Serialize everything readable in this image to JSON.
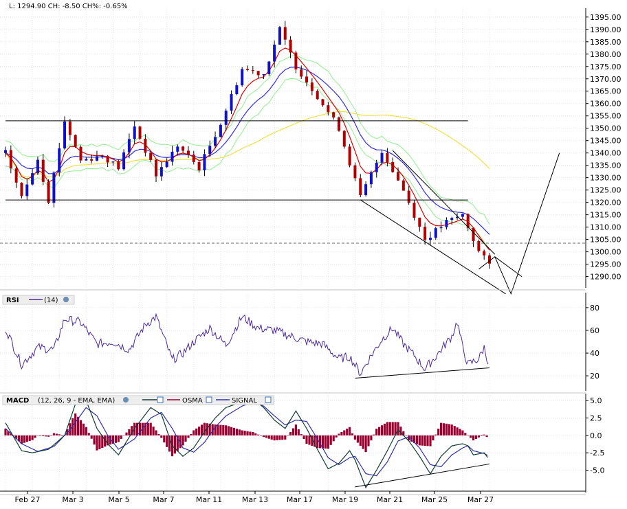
{
  "header": {
    "info": "L: 1294.90 CH: -8.50 CH%: -0.65%"
  },
  "colors": {
    "bg": "#ffffff",
    "grid": "#e3e3e3",
    "grid_dark": "#bdbdbd",
    "up_candle": "#1010c8",
    "down_candle": "#b00000",
    "wick": "#000000",
    "ema_fast": "#e00000",
    "ema_mid": "#3030e0",
    "sma_slow": "#f0e040",
    "envelope": "#90ee90",
    "rsi_line": "#4b2aa0",
    "macd_line": "#0f3a33",
    "signal_line": "#3030b0",
    "osma": "#9a0030"
  },
  "panels": {
    "rsi": {
      "label": "RSI",
      "params": "(14)"
    },
    "macd": {
      "label": "MACD",
      "params": "(12, 26, 9 - EMA, EMA)",
      "legend": [
        "OSMA",
        "SIGNAL"
      ]
    }
  },
  "chart_data": [
    {
      "type": "candlestick",
      "title": "",
      "y_ticks": [
        "1395.00",
        "1390.00",
        "1385.00",
        "1380.00",
        "1375.00",
        "1370.00",
        "1365.00",
        "1360.00",
        "1355.00",
        "1350.00",
        "1345.00",
        "1340.00",
        "1335.00",
        "1330.00",
        "1325.00",
        "1320.00",
        "1315.00",
        "1310.00",
        "1305.00",
        "1300.00",
        "1295.00",
        "1290.00"
      ],
      "ylim": [
        1286,
        1398
      ],
      "x_ticks": [
        "Feb 27",
        "Mar 3",
        "Mar 5",
        "Mar 7",
        "Mar 11",
        "Mar 13",
        "Mar 17",
        "Mar 19",
        "Mar 21",
        "Mar 25",
        "Mar 27"
      ],
      "last_price": 1294.9,
      "dashed_level": 1303.5,
      "anchors": [
        [
          0,
          1340
        ],
        [
          3,
          1322
        ],
        [
          6,
          1338
        ],
        [
          8,
          1321
        ],
        [
          11,
          1353
        ],
        [
          14,
          1337
        ],
        [
          18,
          1339
        ],
        [
          21,
          1334
        ],
        [
          24,
          1351
        ],
        [
          28,
          1331
        ],
        [
          32,
          1343
        ],
        [
          36,
          1334
        ],
        [
          40,
          1352
        ],
        [
          44,
          1374
        ],
        [
          48,
          1372
        ],
        [
          51,
          1390
        ],
        [
          54,
          1375
        ],
        [
          58,
          1363
        ],
        [
          62,
          1350
        ],
        [
          66,
          1322
        ],
        [
          70,
          1341
        ],
        [
          74,
          1325
        ],
        [
          78,
          1305
        ],
        [
          82,
          1312
        ],
        [
          85,
          1315
        ],
        [
          88,
          1300
        ],
        [
          90,
          1294.9
        ]
      ],
      "horizontal_levels": [
        {
          "price": 1353,
          "from": 0,
          "to": 86
        },
        {
          "price": 1321,
          "from": 0,
          "to": 86
        }
      ],
      "trendlines": [
        [
          [
            72,
            1341
          ],
          [
            91,
            1299
          ]
        ],
        [
          [
            66,
            1321
          ],
          [
            93,
            1283
          ]
        ]
      ],
      "projection": [
        [
          88,
          1293
        ],
        [
          91,
          1298
        ],
        [
          94,
          1283
        ],
        [
          103,
          1340
        ]
      ],
      "projection2": [
        [
          91,
          1298
        ],
        [
          96,
          1290
        ]
      ],
      "series": [
        {
          "name": "EMA fast"
        },
        {
          "name": "EMA mid"
        },
        {
          "name": "SMA slow"
        },
        {
          "name": "Envelope"
        }
      ]
    },
    {
      "type": "line",
      "name": "RSI",
      "y_ticks": [
        "80",
        "60",
        "40",
        "20"
      ],
      "ylim": [
        8,
        92
      ],
      "anchors": [
        [
          0,
          62
        ],
        [
          3,
          30
        ],
        [
          6,
          45
        ],
        [
          9,
          43
        ],
        [
          11,
          70
        ],
        [
          14,
          67
        ],
        [
          17,
          48
        ],
        [
          20,
          50
        ],
        [
          23,
          43
        ],
        [
          26,
          65
        ],
        [
          28,
          72
        ],
        [
          31,
          34
        ],
        [
          33,
          40
        ],
        [
          35,
          50
        ],
        [
          38,
          62
        ],
        [
          41,
          47
        ],
        [
          44,
          72
        ],
        [
          47,
          62
        ],
        [
          50,
          60
        ],
        [
          53,
          55
        ],
        [
          56,
          50
        ],
        [
          59,
          48
        ],
        [
          62,
          35
        ],
        [
          64,
          37
        ],
        [
          66,
          22
        ],
        [
          68,
          38
        ],
        [
          70,
          52
        ],
        [
          72,
          62
        ],
        [
          74,
          48
        ],
        [
          76,
          38
        ],
        [
          78,
          26
        ],
        [
          80,
          37
        ],
        [
          83,
          55
        ],
        [
          84,
          68
        ],
        [
          85,
          45
        ],
        [
          86,
          30
        ],
        [
          88,
          35
        ],
        [
          89,
          45
        ],
        [
          90,
          28
        ]
      ],
      "trendline": [
        [
          65,
          18
        ],
        [
          90,
          27
        ]
      ]
    },
    {
      "type": "line+bar",
      "name": "MACD",
      "y_ticks": [
        "5.0",
        "2.5",
        "0.0",
        "-2.5",
        "-5.0"
      ],
      "ylim": [
        -8.0,
        5.8
      ],
      "macd_anchors": [
        [
          0,
          1.8
        ],
        [
          3,
          -2.2
        ],
        [
          5,
          -2.5
        ],
        [
          8,
          -2.0
        ],
        [
          11,
          0.0
        ],
        [
          13,
          4.5
        ],
        [
          15,
          5.0
        ],
        [
          17,
          1.0
        ],
        [
          19,
          -1.2
        ],
        [
          21,
          -2.8
        ],
        [
          24,
          1.0
        ],
        [
          27,
          4.0
        ],
        [
          29,
          3.0
        ],
        [
          31,
          -1.5
        ],
        [
          33,
          -3.0
        ],
        [
          35,
          -1.8
        ],
        [
          37,
          0.5
        ],
        [
          39,
          2.5
        ],
        [
          41,
          4.0
        ],
        [
          44,
          4.8
        ],
        [
          46,
          5.2
        ],
        [
          48,
          4.0
        ],
        [
          50,
          2.2
        ],
        [
          52,
          1.0
        ],
        [
          54,
          3.5
        ],
        [
          56,
          1.0
        ],
        [
          58,
          -2.0
        ],
        [
          60,
          -4.8
        ],
        [
          62,
          -4.0
        ],
        [
          64,
          -2.2
        ],
        [
          65,
          -3.5
        ],
        [
          67,
          -7.5
        ],
        [
          69,
          -5.0
        ],
        [
          71,
          -2.2
        ],
        [
          73,
          0.8
        ],
        [
          75,
          -0.8
        ],
        [
          77,
          -3.0
        ],
        [
          79,
          -5.5
        ],
        [
          81,
          -3.0
        ],
        [
          83,
          -1.5
        ],
        [
          85,
          -1.2
        ],
        [
          86,
          -1.5
        ],
        [
          87,
          -2.8
        ],
        [
          89,
          -2.5
        ],
        [
          90,
          -3.5
        ]
      ],
      "signal_anchors": [
        [
          0,
          1.0
        ],
        [
          3,
          -1.2
        ],
        [
          6,
          -2.3
        ],
        [
          9,
          -1.6
        ],
        [
          12,
          0.8
        ],
        [
          15,
          4.0
        ],
        [
          17,
          2.8
        ],
        [
          19,
          0.0
        ],
        [
          21,
          -2.0
        ],
        [
          24,
          -0.5
        ],
        [
          27,
          2.5
        ],
        [
          29,
          3.3
        ],
        [
          31,
          1.0
        ],
        [
          33,
          -1.8
        ],
        [
          35,
          -2.4
        ],
        [
          37,
          -1.0
        ],
        [
          39,
          1.2
        ],
        [
          41,
          2.8
        ],
        [
          44,
          4.2
        ],
        [
          46,
          4.8
        ],
        [
          48,
          4.2
        ],
        [
          50,
          2.8
        ],
        [
          52,
          1.5
        ],
        [
          54,
          2.2
        ],
        [
          56,
          2.0
        ],
        [
          58,
          -0.5
        ],
        [
          60,
          -3.2
        ],
        [
          62,
          -4.2
        ],
        [
          64,
          -3.2
        ],
        [
          65,
          -3.0
        ],
        [
          67,
          -5.5
        ],
        [
          69,
          -5.8
        ],
        [
          71,
          -3.8
        ],
        [
          73,
          -0.8
        ],
        [
          75,
          -0.2
        ],
        [
          77,
          -1.8
        ],
        [
          79,
          -4.2
        ],
        [
          81,
          -4.5
        ],
        [
          83,
          -2.8
        ],
        [
          85,
          -1.8
        ],
        [
          86,
          -1.5
        ],
        [
          87,
          -2.2
        ],
        [
          89,
          -2.6
        ],
        [
          90,
          -3.0
        ]
      ],
      "trendline": [
        [
          65,
          -7.4
        ],
        [
          90,
          -4.1
        ]
      ]
    }
  ]
}
